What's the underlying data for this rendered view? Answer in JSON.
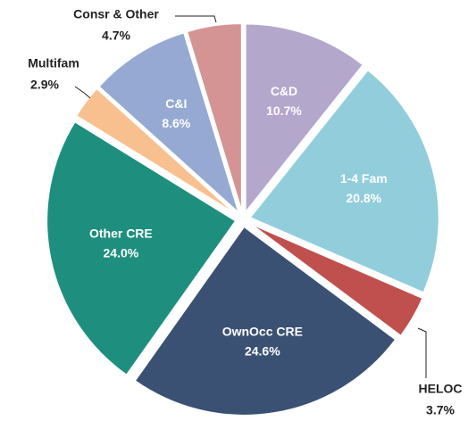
{
  "chart_data": {
    "type": "pie",
    "categories": [
      "C&D",
      "1-4 Fam",
      "HELOC",
      "OwnOcc CRE",
      "Other CRE",
      "Multifam",
      "C&I",
      "Consr & Other"
    ],
    "values": [
      10.7,
      20.8,
      3.7,
      24.6,
      24.0,
      2.9,
      8.6,
      4.7
    ],
    "value_labels": [
      "10.7%",
      "20.8%",
      "3.7%",
      "24.6%",
      "24.0%",
      "2.9%",
      "8.6%",
      "4.7%"
    ],
    "colors": [
      "#b4a7cc",
      "#92cddc",
      "#c0504d",
      "#3a5173",
      "#1e8f7e",
      "#f9c08f",
      "#95a9d3",
      "#d49494"
    ]
  }
}
